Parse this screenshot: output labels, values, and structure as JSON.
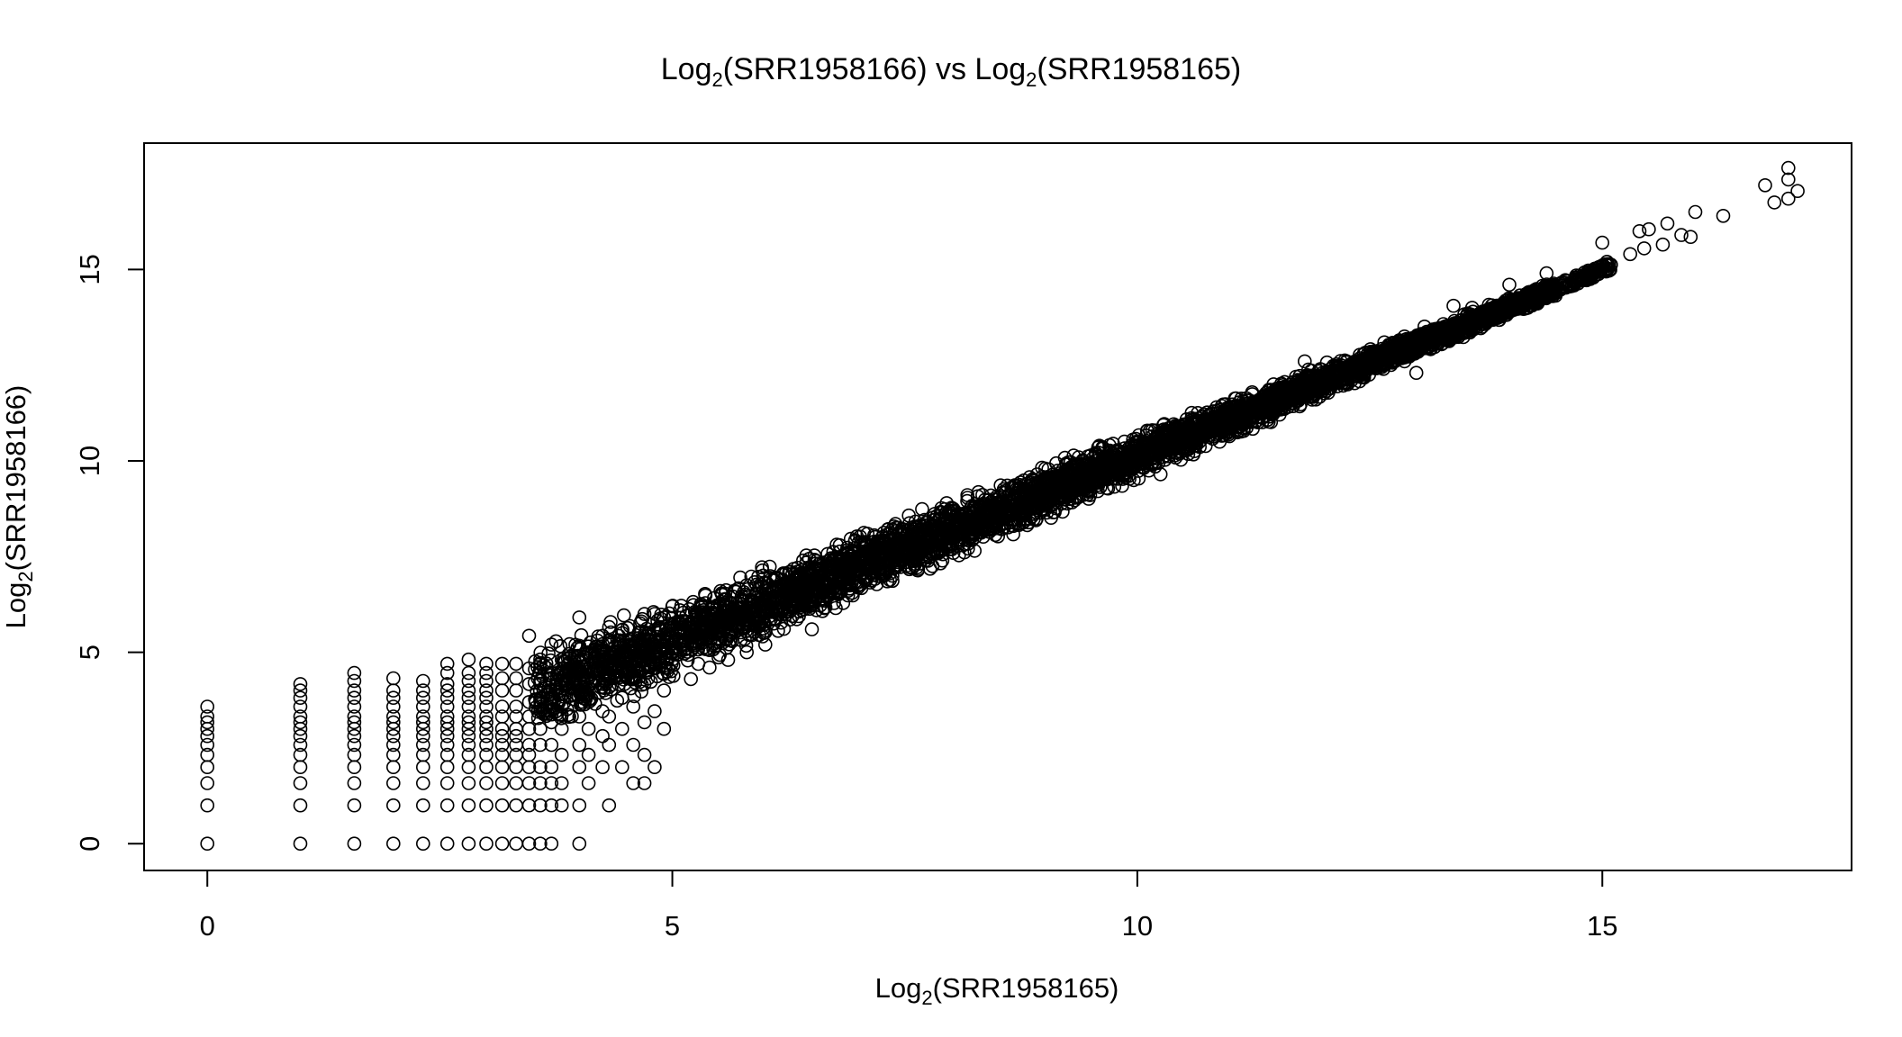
{
  "chart_data": {
    "type": "scatter",
    "title": {
      "prefix": "Log",
      "sub": "2",
      "middle": "(SRR1958166) vs Log",
      "sub2": "2",
      "suffix": "(SRR1958165)"
    },
    "xlabel": {
      "prefix": "Log",
      "sub": "2",
      "suffix": "(SRR1958165)"
    },
    "ylabel": {
      "prefix": "Log",
      "sub": "2",
      "suffix": "(SRR1958166)"
    },
    "xlim": [
      -0.68,
      17.68
    ],
    "ylim": [
      -0.7,
      18.3
    ],
    "x_ticks": [
      0,
      5,
      10,
      15
    ],
    "y_ticks": [
      0,
      5,
      10,
      15
    ],
    "x_tick_labels": [
      "0",
      "5",
      "10",
      "15"
    ],
    "y_tick_labels": [
      "0",
      "5",
      "10",
      "15"
    ],
    "marker": "open-circle",
    "marker_color": "#000000",
    "grid": false,
    "legend": "none",
    "series": [
      {
        "points": [
          [
            0,
            0
          ],
          [
            0,
            1
          ],
          [
            0,
            1.58
          ],
          [
            0,
            2
          ],
          [
            0,
            2.32
          ],
          [
            0,
            2.58
          ],
          [
            0,
            2.81
          ],
          [
            0,
            3
          ],
          [
            0,
            3.17
          ],
          [
            0,
            3.32
          ],
          [
            0,
            3.58
          ],
          [
            1,
            0
          ],
          [
            1,
            1
          ],
          [
            1,
            1.58
          ],
          [
            1,
            2
          ],
          [
            1,
            2.32
          ],
          [
            1,
            2.58
          ],
          [
            1,
            2.81
          ],
          [
            1,
            3
          ],
          [
            1,
            3.17
          ],
          [
            1,
            3.32
          ],
          [
            1,
            3.58
          ],
          [
            1,
            3.81
          ],
          [
            1,
            4
          ],
          [
            1,
            4.17
          ],
          [
            1.58,
            0
          ],
          [
            1.58,
            1
          ],
          [
            1.58,
            1.58
          ],
          [
            1.58,
            2
          ],
          [
            1.58,
            2.32
          ],
          [
            1.58,
            2.58
          ],
          [
            1.58,
            2.81
          ],
          [
            1.58,
            3
          ],
          [
            1.58,
            3.17
          ],
          [
            1.58,
            3.32
          ],
          [
            1.58,
            3.58
          ],
          [
            1.58,
            3.81
          ],
          [
            1.58,
            4
          ],
          [
            1.58,
            4.25
          ],
          [
            1.58,
            4.46
          ],
          [
            2,
            0
          ],
          [
            2,
            1
          ],
          [
            2,
            1.58
          ],
          [
            2,
            2
          ],
          [
            2,
            2.32
          ],
          [
            2,
            2.58
          ],
          [
            2,
            2.81
          ],
          [
            2,
            3
          ],
          [
            2,
            3.17
          ],
          [
            2,
            3.32
          ],
          [
            2,
            3.58
          ],
          [
            2,
            3.81
          ],
          [
            2,
            4
          ],
          [
            2,
            4.32
          ],
          [
            2.32,
            0
          ],
          [
            2.32,
            1
          ],
          [
            2.32,
            1.58
          ],
          [
            2.32,
            2
          ],
          [
            2.32,
            2.32
          ],
          [
            2.32,
            2.58
          ],
          [
            2.32,
            2.81
          ],
          [
            2.32,
            3
          ],
          [
            2.32,
            3.17
          ],
          [
            2.32,
            3.32
          ],
          [
            2.32,
            3.58
          ],
          [
            2.32,
            3.81
          ],
          [
            2.32,
            4
          ],
          [
            2.32,
            4.25
          ],
          [
            2.58,
            0
          ],
          [
            2.58,
            1
          ],
          [
            2.58,
            1.58
          ],
          [
            2.58,
            2
          ],
          [
            2.58,
            2.32
          ],
          [
            2.58,
            2.58
          ],
          [
            2.58,
            2.81
          ],
          [
            2.58,
            3
          ],
          [
            2.58,
            3.17
          ],
          [
            2.58,
            3.32
          ],
          [
            2.58,
            3.58
          ],
          [
            2.58,
            3.81
          ],
          [
            2.58,
            4
          ],
          [
            2.58,
            4.17
          ],
          [
            2.58,
            4.46
          ],
          [
            2.58,
            4.7
          ],
          [
            2.81,
            0
          ],
          [
            2.81,
            1
          ],
          [
            2.81,
            1.58
          ],
          [
            2.81,
            2
          ],
          [
            2.81,
            2.32
          ],
          [
            2.81,
            2.58
          ],
          [
            2.81,
            2.81
          ],
          [
            2.81,
            3
          ],
          [
            2.81,
            3.17
          ],
          [
            2.81,
            3.32
          ],
          [
            2.81,
            3.58
          ],
          [
            2.81,
            3.81
          ],
          [
            2.81,
            4
          ],
          [
            2.81,
            4.25
          ],
          [
            2.81,
            4.46
          ],
          [
            2.81,
            4.81
          ],
          [
            3,
            0
          ],
          [
            3,
            1
          ],
          [
            3,
            1.58
          ],
          [
            3,
            2
          ],
          [
            3,
            2.32
          ],
          [
            3,
            2.58
          ],
          [
            3,
            2.81
          ],
          [
            3,
            3
          ],
          [
            3,
            3.17
          ],
          [
            3,
            3.32
          ],
          [
            3,
            3.58
          ],
          [
            3,
            3.81
          ],
          [
            3,
            4
          ],
          [
            3,
            4.25
          ],
          [
            3,
            4.46
          ],
          [
            3,
            4.7
          ],
          [
            3.17,
            0
          ],
          [
            3.17,
            1
          ],
          [
            3.17,
            1.58
          ],
          [
            3.17,
            2
          ],
          [
            3.17,
            2.32
          ],
          [
            3.17,
            2.58
          ],
          [
            3.17,
            2.81
          ],
          [
            3.17,
            3
          ],
          [
            3.17,
            3.32
          ],
          [
            3.17,
            3.58
          ],
          [
            3.17,
            4
          ],
          [
            3.17,
            4.32
          ],
          [
            3.17,
            4.7
          ],
          [
            3.32,
            0
          ],
          [
            3.32,
            1
          ],
          [
            3.32,
            1.58
          ],
          [
            3.32,
            2
          ],
          [
            3.32,
            2.32
          ],
          [
            3.32,
            2.58
          ],
          [
            3.32,
            2.81
          ],
          [
            3.32,
            3
          ],
          [
            3.32,
            3.32
          ],
          [
            3.32,
            3.58
          ],
          [
            3.32,
            4
          ],
          [
            3.32,
            4.32
          ],
          [
            3.32,
            4.7
          ],
          [
            3.46,
            0
          ],
          [
            3.46,
            1
          ],
          [
            3.46,
            1.58
          ],
          [
            3.46,
            2
          ],
          [
            3.46,
            2.32
          ],
          [
            3.46,
            2.58
          ],
          [
            3.46,
            3
          ],
          [
            3.46,
            3.32
          ],
          [
            3.46,
            3.7
          ],
          [
            3.46,
            4.17
          ],
          [
            3.46,
            4.58
          ],
          [
            3.46,
            5.43
          ],
          [
            3.58,
            0
          ],
          [
            3.58,
            1
          ],
          [
            3.58,
            1.58
          ],
          [
            3.58,
            2
          ],
          [
            3.58,
            2.58
          ],
          [
            3.58,
            3
          ],
          [
            3.58,
            3.58
          ],
          [
            3.58,
            4.25
          ],
          [
            3.58,
            4.81
          ],
          [
            3.7,
            0
          ],
          [
            3.7,
            1
          ],
          [
            3.7,
            1.58
          ],
          [
            3.7,
            2
          ],
          [
            3.7,
            2.58
          ],
          [
            3.7,
            3.17
          ],
          [
            3.7,
            3.81
          ],
          [
            3.7,
            4.46
          ],
          [
            3.7,
            5.2
          ],
          [
            3.81,
            1
          ],
          [
            3.81,
            1.58
          ],
          [
            3.81,
            2.32
          ],
          [
            3.81,
            3
          ],
          [
            3.81,
            3.58
          ],
          [
            3.81,
            4.17
          ],
          [
            3.81,
            4.81
          ],
          [
            4,
            0
          ],
          [
            4,
            1
          ],
          [
            4,
            2
          ],
          [
            4,
            2.58
          ],
          [
            4,
            3.32
          ],
          [
            4,
            4
          ],
          [
            4,
            4.58
          ],
          [
            4,
            5.17
          ],
          [
            4,
            5.91
          ],
          [
            4.1,
            1.58
          ],
          [
            4.1,
            2.32
          ],
          [
            4.1,
            3
          ],
          [
            4.1,
            3.7
          ],
          [
            4.1,
            4.32
          ],
          [
            4.1,
            5
          ],
          [
            4.25,
            2
          ],
          [
            4.25,
            2.81
          ],
          [
            4.25,
            3.46
          ],
          [
            4.25,
            4.17
          ],
          [
            4.25,
            4.81
          ],
          [
            4.25,
            5.43
          ],
          [
            4.32,
            1
          ],
          [
            4.32,
            2.58
          ],
          [
            4.32,
            3.32
          ],
          [
            4.32,
            4.46
          ],
          [
            4.32,
            5.32
          ],
          [
            4.46,
            2
          ],
          [
            4.46,
            3
          ],
          [
            4.46,
            3.81
          ],
          [
            4.46,
            4.58
          ],
          [
            4.46,
            5.58
          ],
          [
            4.58,
            1.58
          ],
          [
            4.58,
            2.58
          ],
          [
            4.58,
            3.58
          ],
          [
            4.58,
            4.32
          ],
          [
            4.58,
            5
          ],
          [
            4.7,
            1.58
          ],
          [
            4.7,
            2.32
          ],
          [
            4.7,
            3.17
          ],
          [
            4.7,
            4.17
          ],
          [
            4.7,
            5.17
          ],
          [
            4.7,
            6
          ],
          [
            4.81,
            2
          ],
          [
            4.81,
            3.46
          ],
          [
            4.81,
            4.58
          ],
          [
            4.81,
            5.58
          ],
          [
            4.91,
            3
          ],
          [
            4.91,
            4
          ],
          [
            4.91,
            5.2
          ],
          [
            4.91,
            5.91
          ],
          [
            5,
            4.81
          ],
          [
            5,
            6.2
          ],
          [
            5.2,
            4.3
          ],
          [
            5.4,
            4.6
          ],
          [
            5.6,
            4.8
          ],
          [
            5.8,
            5.0
          ],
          [
            6.0,
            5.2
          ],
          [
            5.8,
            6.75
          ],
          [
            6.5,
            5.6
          ],
          [
            6.6,
            7.0
          ],
          [
            7.4,
            8.35
          ],
          [
            8.25,
            7.65
          ],
          [
            9.25,
            9.75
          ],
          [
            10.3,
            10.7
          ],
          [
            10.25,
            9.65
          ],
          [
            11.55,
            11.35
          ],
          [
            11.8,
            12.6
          ],
          [
            13.0,
            12.3
          ],
          [
            13.4,
            14.05
          ],
          [
            13.6,
            14.0
          ],
          [
            14.0,
            14.6
          ],
          [
            14.2,
            14.0
          ],
          [
            14.4,
            14.9
          ],
          [
            15.0,
            15.7
          ],
          [
            15.05,
            15.2
          ],
          [
            15.3,
            15.4
          ],
          [
            15.4,
            16.0
          ],
          [
            15.45,
            15.55
          ],
          [
            15.5,
            16.05
          ],
          [
            15.65,
            15.65
          ],
          [
            15.7,
            16.2
          ],
          [
            15.85,
            15.9
          ],
          [
            15.95,
            15.85
          ],
          [
            16.0,
            16.5
          ],
          [
            16.3,
            16.4
          ],
          [
            16.75,
            17.2
          ],
          [
            16.85,
            16.75
          ],
          [
            17.0,
            16.85
          ],
          [
            17.0,
            17.35
          ],
          [
            17.0,
            17.65
          ],
          [
            17.1,
            17.05
          ]
        ]
      }
    ],
    "dense_band": {
      "description_of_trend": "y approximately equals x",
      "x_range": [
        3.5,
        14.5
      ],
      "y_spread_at_low_x": 1.4,
      "y_spread_at_high_x": 0.25
    }
  }
}
